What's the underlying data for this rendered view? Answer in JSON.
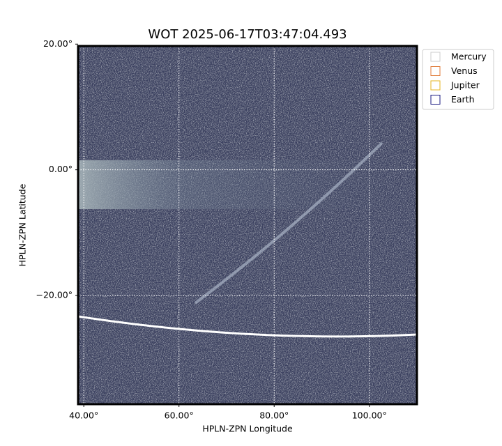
{
  "chart_data": {
    "type": "image",
    "title": "WOT 2025-06-17T03:47:04.493",
    "x_label": "HPLN-ZPN Longitude",
    "y_label": "HPLN-ZPN Latitude",
    "xlim": [
      38.8,
      110
    ],
    "ylim": [
      -37.3,
      19.7
    ],
    "xticks": [
      {
        "value": 40,
        "label": "40.00°"
      },
      {
        "value": 60,
        "label": "60.00°"
      },
      {
        "value": 80,
        "label": "80.00°"
      },
      {
        "value": 100,
        "label": "100.00°"
      }
    ],
    "yticks": [
      {
        "value": 20,
        "label": "20.00°"
      },
      {
        "value": 0,
        "label": "0.00°"
      },
      {
        "value": -20,
        "label": "−20.00°"
      }
    ],
    "grid": true,
    "legend_position": "upper right",
    "legend": [
      {
        "name": "Mercury",
        "color": "#cccccc"
      },
      {
        "name": "Venus",
        "color": "#e07b39"
      },
      {
        "name": "Jupiter",
        "color": "#e6b422"
      },
      {
        "name": "Earth",
        "color": "#1a1a80"
      }
    ]
  }
}
